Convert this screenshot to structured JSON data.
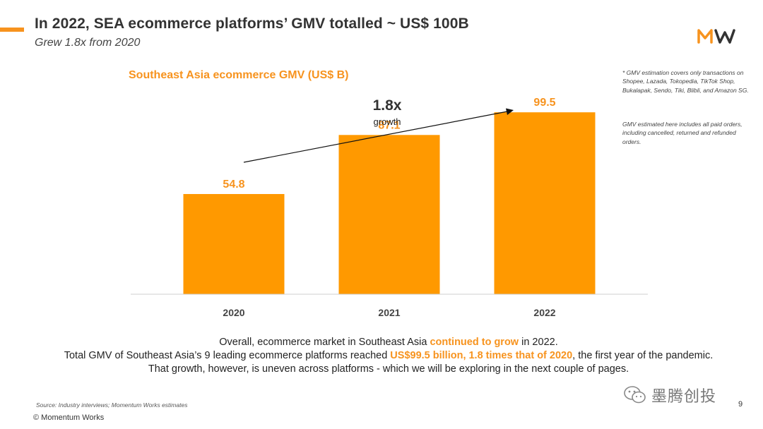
{
  "slide": {
    "title": "In 2022, SEA ecommerce platforms’ GMV totalled ~ US$ 100B",
    "subtitle": "Grew 1.8x from 2020",
    "page_number": "9"
  },
  "colors": {
    "accent": "#f7931e",
    "text": "#222222"
  },
  "logo": {
    "icon": "momentum-works-logo-icon"
  },
  "notes": [
    "* GMV estimation covers only transactions on Shopee, Lazada, Tokopedia, TikTok Shop, Bukalapak, Sendo, Tiki, Blibli, and Amazon SG.",
    "GMV estimated here includes all paid orders, including cancelled, returned and refunded orders."
  ],
  "growth": {
    "value": "1.8x",
    "label": "growth"
  },
  "chart_data": {
    "type": "bar",
    "title": "Southeast Asia ecommerce GMV (US$ B)",
    "categories": [
      "2020",
      "2021",
      "2022"
    ],
    "values": [
      54.8,
      87.1,
      99.5
    ],
    "value_labels": [
      "54.8",
      "87.1",
      "99.5"
    ],
    "ylim": [
      0,
      115
    ],
    "grid": false,
    "bar_color": "#ff9900"
  },
  "summary": {
    "line1": [
      {
        "text": "Overall, ecommerce market in Southeast Asia ",
        "hl": false
      },
      {
        "text": "continued to grow",
        "hl": true
      },
      {
        "text": " in 2022.",
        "hl": false
      }
    ],
    "line2": [
      {
        "text": "Total GMV of Southeast Asia’s 9 leading ecommerce platforms reached ",
        "hl": false
      },
      {
        "text": "US$99.5 billion, 1.8 times that of 2020",
        "hl": true
      },
      {
        "text": ", the first year of the pandemic.",
        "hl": false
      }
    ],
    "line3": [
      {
        "text": "That growth, however, is uneven across platforms - which we will be exploring in the next couple of pages.",
        "hl": false
      }
    ]
  },
  "source": "Source: Industry interviews; Momentum Works estimates",
  "copyright": "© Momentum Works",
  "watermark": {
    "icon": "wechat-icon",
    "text": "墨腾创投"
  }
}
